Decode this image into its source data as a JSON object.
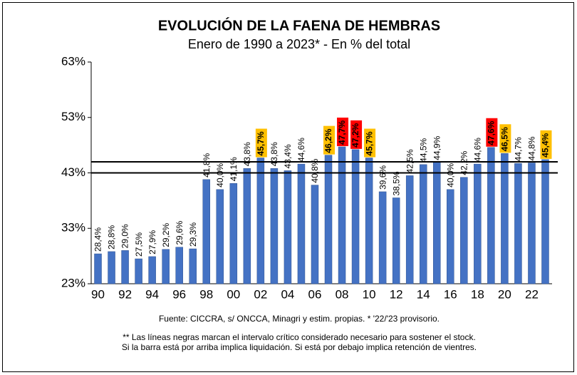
{
  "chart_data": {
    "type": "bar",
    "title": "EVOLUCIÓN DE LA FAENA DE HEMBRAS",
    "subtitle": "Enero de 1990 a 2023* - En % del total",
    "categories": [
      "90",
      null,
      "92",
      null,
      "94",
      null,
      "96",
      null,
      "98",
      null,
      "00",
      null,
      "02",
      null,
      "04",
      null,
      "06",
      null,
      "08",
      null,
      "10",
      null,
      "12",
      null,
      "14",
      null,
      "16",
      null,
      "18",
      null,
      "20",
      null,
      "22",
      null
    ],
    "values": [
      28.4,
      28.8,
      29.0,
      27.5,
      27.9,
      29.2,
      29.6,
      29.3,
      41.8,
      40.0,
      41.1,
      43.8,
      45.7,
      43.8,
      43.4,
      44.6,
      40.8,
      46.2,
      47.7,
      47.2,
      45.7,
      39.6,
      38.5,
      42.5,
      44.5,
      44.9,
      40.0,
      42.2,
      44.6,
      47.6,
      46.5,
      44.7,
      44.8,
      45.4
    ],
    "value_labels": [
      "28,4%",
      "28,8%",
      "29,0%",
      "27,5%",
      "27,9%",
      "29,2%",
      "29,6%",
      "29,3%",
      "41,8%",
      "40,0%",
      "41,1%",
      "43,8%",
      "45,7%",
      "43,8%",
      "43,4%",
      "44,6%",
      "40,8%",
      "46,2%",
      "47,7%",
      "47,2%",
      "45,7%",
      "39,6%",
      "38,5%",
      "42,5%",
      "44,5%",
      "44,9%",
      "40,0%",
      "42,2%",
      "44,6%",
      "47,6%",
      "46,5%",
      "44,7%",
      "44,8%",
      "45,4%"
    ],
    "label_highlights": [
      null,
      null,
      null,
      null,
      null,
      null,
      null,
      null,
      null,
      null,
      null,
      null,
      "#ffc000",
      null,
      null,
      null,
      null,
      "#ffc000",
      "#ff0000",
      "#ff0000",
      "#ffc000",
      null,
      null,
      null,
      null,
      null,
      null,
      null,
      null,
      "#ff0000",
      "#ffc000",
      null,
      null,
      "#ffc000"
    ],
    "color": "#4472c4",
    "ylim": [
      23,
      63
    ],
    "yticks": [
      {
        "value": 23,
        "label": "23%"
      },
      {
        "value": 33,
        "label": "33%"
      },
      {
        "value": 43,
        "label": "43%"
      },
      {
        "value": 53,
        "label": "53%"
      },
      {
        "value": 63,
        "label": "63%"
      }
    ],
    "reference_lines": [
      43,
      45
    ],
    "source": "Fuente: CICCRA, s/ ONCCA, Minagri y estim. propias. * '22/'23  provisorio.",
    "notes": [
      "** Las líneas negras marcan el intervalo crítico considerado necesario para sostener el stock.",
      "Si la barra está por arriba implica liquidación. Si está por debajo implica retención de vientres."
    ]
  }
}
